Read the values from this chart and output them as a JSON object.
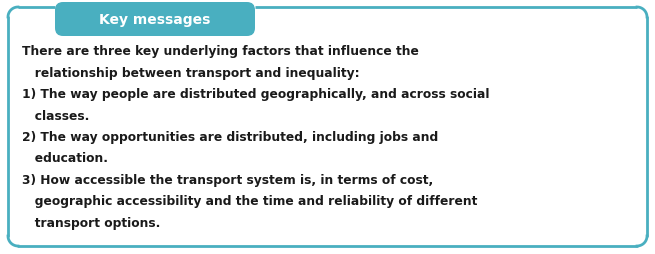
{
  "title": "Key messages",
  "title_bg_color": "#49afc0",
  "title_text_color": "#ffffff",
  "border_color": "#49afc0",
  "bg_color": "#ffffff",
  "body_text_color": "#1a1a1a",
  "lines": [
    "There are three key underlying factors that influence the",
    "   relationship between transport and inequality:",
    "1) The way people are distributed geographically, and across social",
    "   classes.",
    "2) The way opportunities are distributed, including jobs and",
    "   education.",
    "3) How accessible the transport system is, in terms of cost,",
    "   geographic accessibility and the time and reliability of different",
    "   transport options."
  ],
  "font_size": 8.8,
  "title_font_size": 10.0,
  "fig_width": 6.55,
  "fig_height": 2.55,
  "dpi": 100
}
